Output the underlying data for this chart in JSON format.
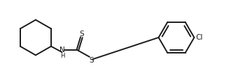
{
  "bg_color": "#ffffff",
  "line_color": "#1a1a1a",
  "line_width": 1.4,
  "font_size": 7.5,
  "fig_width": 3.27,
  "fig_height": 1.08,
  "dpi": 100,
  "xlim": [
    0,
    10.5
  ],
  "ylim": [
    0,
    3.2
  ]
}
